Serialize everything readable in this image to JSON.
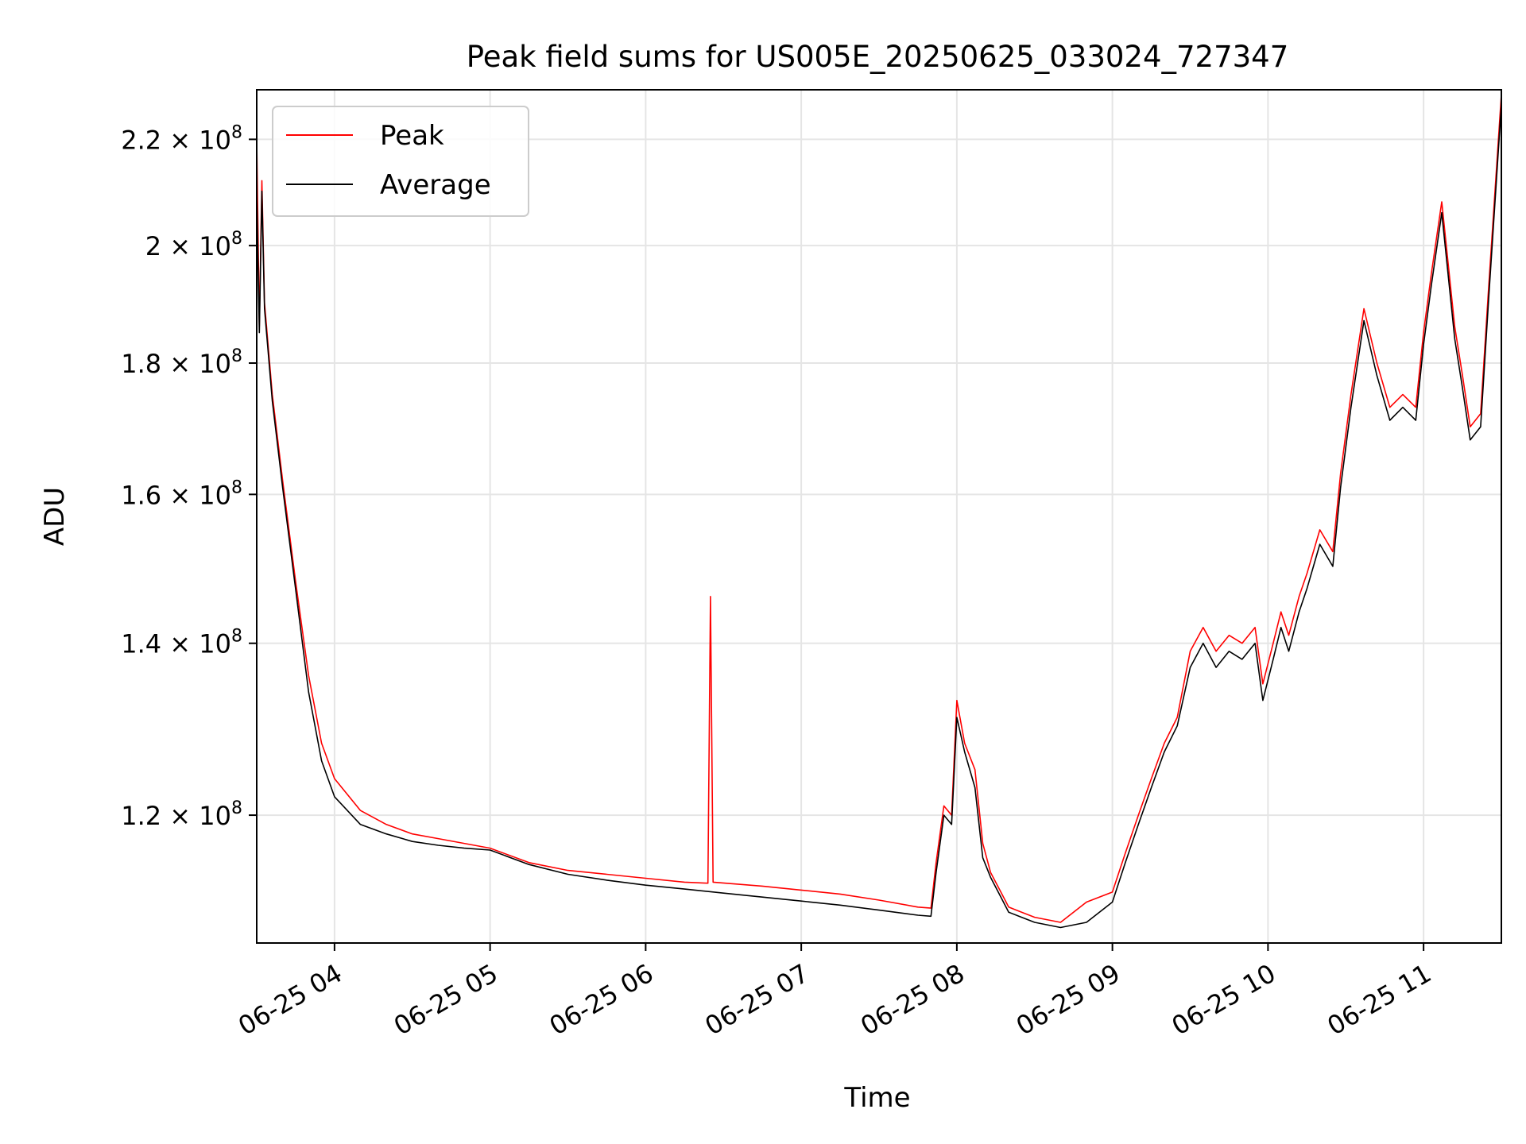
{
  "chart_data": {
    "type": "line",
    "title": "Peak field sums for US005E_20250625_033024_727347",
    "xlabel": "Time",
    "ylabel": "ADU",
    "yscale": "log",
    "grid": true,
    "legend_position": "top-left",
    "xlim": [
      "2025-06-25 03:30",
      "2025-06-25 11:30"
    ],
    "ylim": [
      107000000,
      230000000
    ],
    "x_ticks": [
      {
        "label": "06-25 04",
        "time": "2025-06-25 04:00"
      },
      {
        "label": "06-25 05",
        "time": "2025-06-25 05:00"
      },
      {
        "label": "06-25 06",
        "time": "2025-06-25 06:00"
      },
      {
        "label": "06-25 07",
        "time": "2025-06-25 07:00"
      },
      {
        "label": "06-25 08",
        "time": "2025-06-25 08:00"
      },
      {
        "label": "06-25 09",
        "time": "2025-06-25 09:00"
      },
      {
        "label": "06-25 10",
        "time": "2025-06-25 10:00"
      },
      {
        "label": "06-25 11",
        "time": "2025-06-25 11:00"
      }
    ],
    "y_ticks": [
      {
        "mantissa": "1.2",
        "exponent": "8",
        "value": 120000000
      },
      {
        "mantissa": "1.4",
        "exponent": "8",
        "value": 140000000
      },
      {
        "mantissa": "1.6",
        "exponent": "8",
        "value": 160000000
      },
      {
        "mantissa": "1.8",
        "exponent": "8",
        "value": 180000000
      },
      {
        "mantissa": "2",
        "exponent": "8",
        "value": 200000000
      },
      {
        "mantissa": "2.2",
        "exponent": "8",
        "value": 220000000
      }
    ],
    "times_symbol": "×",
    "series": [
      {
        "name": "Peak",
        "color": "#ff0000",
        "x": [
          "2025-06-25 03:30",
          "2025-06-25 03:31",
          "2025-06-25 03:32",
          "2025-06-25 03:33",
          "2025-06-25 03:36",
          "2025-06-25 03:40",
          "2025-06-25 03:45",
          "2025-06-25 03:50",
          "2025-06-25 03:55",
          "2025-06-25 04:00",
          "2025-06-25 04:10",
          "2025-06-25 04:20",
          "2025-06-25 04:30",
          "2025-06-25 04:40",
          "2025-06-25 04:50",
          "2025-06-25 05:00",
          "2025-06-25 05:15",
          "2025-06-25 05:30",
          "2025-06-25 05:45",
          "2025-06-25 06:00",
          "2025-06-25 06:15",
          "2025-06-25 06:24",
          "2025-06-25 06:25",
          "2025-06-25 06:26",
          "2025-06-25 06:45",
          "2025-06-25 07:00",
          "2025-06-25 07:15",
          "2025-06-25 07:30",
          "2025-06-25 07:45",
          "2025-06-25 07:50",
          "2025-06-25 07:52",
          "2025-06-25 07:55",
          "2025-06-25 07:58",
          "2025-06-25 08:00",
          "2025-06-25 08:03",
          "2025-06-25 08:07",
          "2025-06-25 08:10",
          "2025-06-25 08:13",
          "2025-06-25 08:17",
          "2025-06-25 08:20",
          "2025-06-25 08:25",
          "2025-06-25 08:30",
          "2025-06-25 08:40",
          "2025-06-25 08:50",
          "2025-06-25 09:00",
          "2025-06-25 09:05",
          "2025-06-25 09:10",
          "2025-06-25 09:15",
          "2025-06-25 09:20",
          "2025-06-25 09:25",
          "2025-06-25 09:30",
          "2025-06-25 09:35",
          "2025-06-25 09:40",
          "2025-06-25 09:45",
          "2025-06-25 09:50",
          "2025-06-25 09:55",
          "2025-06-25 09:58",
          "2025-06-25 10:02",
          "2025-06-25 10:05",
          "2025-06-25 10:08",
          "2025-06-25 10:12",
          "2025-06-25 10:15",
          "2025-06-25 10:20",
          "2025-06-25 10:25",
          "2025-06-25 10:28",
          "2025-06-25 10:32",
          "2025-06-25 10:37",
          "2025-06-25 10:42",
          "2025-06-25 10:47",
          "2025-06-25 10:52",
          "2025-06-25 10:57",
          "2025-06-25 11:00",
          "2025-06-25 11:03",
          "2025-06-25 11:07",
          "2025-06-25 11:12",
          "2025-06-25 11:15",
          "2025-06-25 11:18",
          "2025-06-25 11:22",
          "2025-06-25 11:25",
          "2025-06-25 11:30"
        ],
        "y": [
          220000000,
          186000000,
          212000000,
          190000000,
          175000000,
          162000000,
          148000000,
          136000000,
          128000000,
          124000000,
          120500000,
          119000000,
          118000000,
          117500000,
          117000000,
          116500000,
          115000000,
          114200000,
          113800000,
          113400000,
          113000000,
          112900000,
          146000000,
          113000000,
          112600000,
          112200000,
          111800000,
          111200000,
          110500000,
          110400000,
          115000000,
          121000000,
          120000000,
          133000000,
          128000000,
          125000000,
          117000000,
          114000000,
          112000000,
          110500000,
          110000000,
          109500000,
          109000000,
          111000000,
          112000000,
          116000000,
          120000000,
          124000000,
          128000000,
          131000000,
          139000000,
          142000000,
          139000000,
          141000000,
          140000000,
          142000000,
          135000000,
          140000000,
          144000000,
          141000000,
          146000000,
          149000000,
          155000000,
          152000000,
          163000000,
          175000000,
          189000000,
          180000000,
          173000000,
          175000000,
          173000000,
          185000000,
          195000000,
          208000000,
          186000000,
          178000000,
          170000000,
          172000000,
          192000000,
          229000000
        ]
      },
      {
        "name": "Average",
        "color": "#000000",
        "x": [
          "2025-06-25 03:30",
          "2025-06-25 03:31",
          "2025-06-25 03:32",
          "2025-06-25 03:33",
          "2025-06-25 03:36",
          "2025-06-25 03:40",
          "2025-06-25 03:45",
          "2025-06-25 03:50",
          "2025-06-25 03:55",
          "2025-06-25 04:00",
          "2025-06-25 04:10",
          "2025-06-25 04:20",
          "2025-06-25 04:30",
          "2025-06-25 04:40",
          "2025-06-25 04:50",
          "2025-06-25 05:00",
          "2025-06-25 05:15",
          "2025-06-25 05:30",
          "2025-06-25 05:45",
          "2025-06-25 06:00",
          "2025-06-25 06:15",
          "2025-06-25 06:30",
          "2025-06-25 06:45",
          "2025-06-25 07:00",
          "2025-06-25 07:15",
          "2025-06-25 07:30",
          "2025-06-25 07:45",
          "2025-06-25 07:50",
          "2025-06-25 07:52",
          "2025-06-25 07:55",
          "2025-06-25 07:58",
          "2025-06-25 08:00",
          "2025-06-25 08:03",
          "2025-06-25 08:07",
          "2025-06-25 08:10",
          "2025-06-25 08:13",
          "2025-06-25 08:17",
          "2025-06-25 08:20",
          "2025-06-25 08:25",
          "2025-06-25 08:30",
          "2025-06-25 08:40",
          "2025-06-25 08:50",
          "2025-06-25 09:00",
          "2025-06-25 09:05",
          "2025-06-25 09:10",
          "2025-06-25 09:15",
          "2025-06-25 09:20",
          "2025-06-25 09:25",
          "2025-06-25 09:30",
          "2025-06-25 09:35",
          "2025-06-25 09:40",
          "2025-06-25 09:45",
          "2025-06-25 09:50",
          "2025-06-25 09:55",
          "2025-06-25 09:58",
          "2025-06-25 10:02",
          "2025-06-25 10:05",
          "2025-06-25 10:08",
          "2025-06-25 10:12",
          "2025-06-25 10:15",
          "2025-06-25 10:20",
          "2025-06-25 10:25",
          "2025-06-25 10:28",
          "2025-06-25 10:32",
          "2025-06-25 10:37",
          "2025-06-25 10:42",
          "2025-06-25 10:47",
          "2025-06-25 10:52",
          "2025-06-25 10:57",
          "2025-06-25 11:00",
          "2025-06-25 11:03",
          "2025-06-25 11:07",
          "2025-06-25 11:12",
          "2025-06-25 11:15",
          "2025-06-25 11:18",
          "2025-06-25 11:22",
          "2025-06-25 11:25",
          "2025-06-25 11:30"
        ],
        "y": [
          210000000,
          185000000,
          210000000,
          189000000,
          174000000,
          161000000,
          147000000,
          134000000,
          126000000,
          122000000,
          119000000,
          118000000,
          117200000,
          116800000,
          116500000,
          116300000,
          114800000,
          113800000,
          113200000,
          112700000,
          112300000,
          111900000,
          111500000,
          111100000,
          110700000,
          110200000,
          109700000,
          109600000,
          114000000,
          120000000,
          119000000,
          131000000,
          127000000,
          123000000,
          115500000,
          113500000,
          111500000,
          110000000,
          109500000,
          109000000,
          108500000,
          109000000,
          111000000,
          115000000,
          119000000,
          123000000,
          127000000,
          130000000,
          137000000,
          140000000,
          137000000,
          139000000,
          138000000,
          140000000,
          133000000,
          138000000,
          142000000,
          139000000,
          144000000,
          147000000,
          153000000,
          150000000,
          161000000,
          173000000,
          187000000,
          178000000,
          171000000,
          173000000,
          171000000,
          183000000,
          193000000,
          206000000,
          184000000,
          176000000,
          168000000,
          170000000,
          190000000,
          227000000
        ]
      }
    ]
  }
}
